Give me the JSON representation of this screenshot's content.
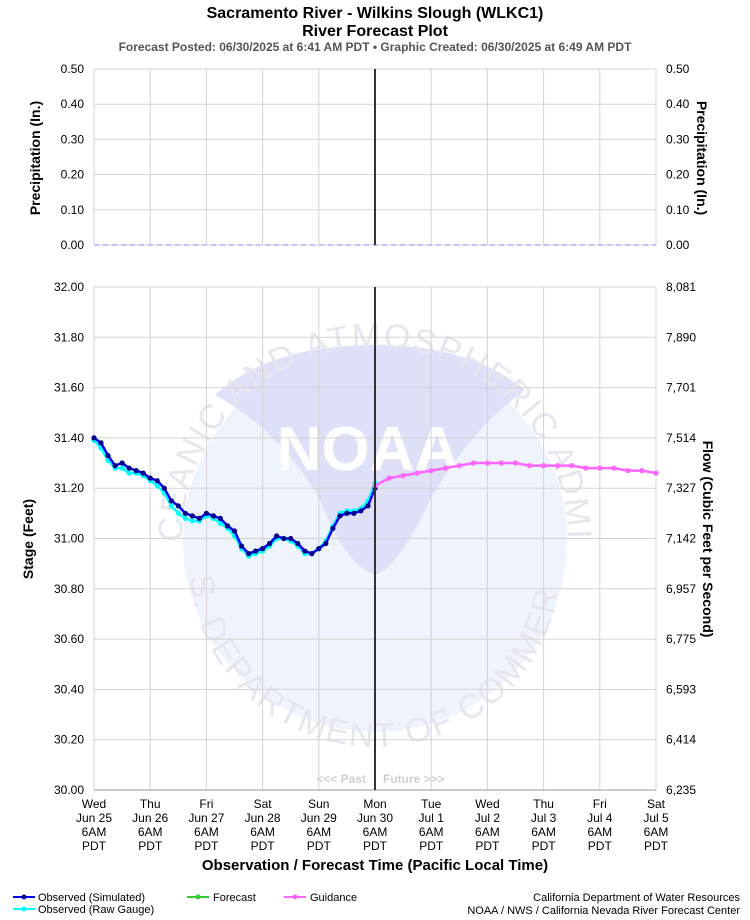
{
  "title_line1": "Sacramento River - Wilkins Slough (WLKC1)",
  "title_line2": "River Forecast Plot",
  "subtitle": "Forecast Posted: 06/30/2025 at 6:41 AM PDT  •  Graphic Created: 06/30/2025 at 6:49 AM PDT",
  "watermark": {
    "noaa": "NOAA",
    "ring_top": "NATIONAL OCEANIC AND ATMOSPHERIC ADMINISTRATION",
    "ring_bottom": "U.S. DEPARTMENT OF COMMERCE"
  },
  "past_label": "<<< Past",
  "future_label": "Future >>>",
  "x_axis_title": "Observation / Forecast Time (Pacific Local Time)",
  "legend": {
    "observed_simulated": "Observed (Simulated)",
    "observed_raw": "Observed (Raw Gauge)",
    "forecast": "Forecast",
    "guidance": "Guidance"
  },
  "credits": {
    "line1": "California Department of Water Resources",
    "line2": "NOAA / NWS / California Nevada River Forecast Center"
  },
  "colors": {
    "observed_simulated": "#0000ff",
    "observed_simulated_marker": "#00008b",
    "observed_raw": "#00ffff",
    "forecast": "#33cc33",
    "guidance": "#ff66ff",
    "precip_dash": "#aab4ff",
    "now_line": "#333333",
    "grid": "#d3d3d3"
  },
  "chart_data": [
    {
      "type": "line",
      "panel": "precipitation",
      "ylabel_left": "Precipitation (In.)",
      "ylabel_right": "Precipitation (In.)",
      "ylim": [
        0,
        0.5
      ],
      "yticks": [
        "0.00",
        "0.10",
        "0.20",
        "0.30",
        "0.40",
        "0.50"
      ],
      "grid": true,
      "series": [
        {
          "values_note": "",
          "t_start_hours": 0,
          "t_end_hours": 240,
          "values": [
            0,
            0
          ]
        }
      ]
    },
    {
      "type": "line",
      "panel": "stage",
      "ylabel_left": "Stage (Feet)",
      "ylabel_right": "Flow (Cubic Feet per Second)",
      "ylim": [
        30.0,
        32.0
      ],
      "yticks_left": [
        "30.00",
        "30.20",
        "30.40",
        "30.60",
        "30.80",
        "31.00",
        "31.20",
        "31.40",
        "31.60",
        "31.80",
        "32.00"
      ],
      "yticks_right": [
        "6,235",
        "6,414",
        "6,593",
        "6,775",
        "6,957",
        "7,142",
        "7,327",
        "7,514",
        "7,701",
        "7,890",
        "8,081"
      ],
      "x_hours_per_day": 24,
      "x_ticks": [
        {
          "day": "Wed",
          "date": "Jun 25",
          "time": "6AM",
          "tz": "PDT"
        },
        {
          "day": "Thu",
          "date": "Jun 26",
          "time": "6AM",
          "tz": "PDT"
        },
        {
          "day": "Fri",
          "date": "Jun 27",
          "time": "6AM",
          "tz": "PDT"
        },
        {
          "day": "Sat",
          "date": "Jun 28",
          "time": "6AM",
          "tz": "PDT"
        },
        {
          "day": "Sun",
          "date": "Jun 29",
          "time": "6AM",
          "tz": "PDT"
        },
        {
          "day": "Mon",
          "date": "Jun 30",
          "time": "6AM",
          "tz": "PDT"
        },
        {
          "day": "Tue",
          "date": "Jul 1",
          "time": "6AM",
          "tz": "PDT"
        },
        {
          "day": "Wed",
          "date": "Jul 2",
          "time": "6AM",
          "tz": "PDT"
        },
        {
          "day": "Thu",
          "date": "Jul 3",
          "time": "6AM",
          "tz": "PDT"
        },
        {
          "day": "Fri",
          "date": "Jul 4",
          "time": "6AM",
          "tz": "PDT"
        },
        {
          "day": "Sat",
          "date": "Jul 5",
          "time": "6AM",
          "tz": "PDT"
        }
      ],
      "now_hours": 120,
      "grid": true,
      "observed_simulated": {
        "t_hours": [
          0,
          3,
          6,
          9,
          12,
          15,
          18,
          21,
          24,
          27,
          30,
          33,
          36,
          39,
          42,
          45,
          48,
          51,
          54,
          57,
          60,
          63,
          66,
          69,
          72,
          75,
          78,
          81,
          84,
          87,
          90,
          93,
          96,
          99,
          102,
          105,
          108,
          111,
          114,
          117,
          120
        ],
        "stage": [
          31.4,
          31.38,
          31.33,
          31.29,
          31.3,
          31.28,
          31.27,
          31.26,
          31.24,
          31.23,
          31.2,
          31.15,
          31.13,
          31.1,
          31.09,
          31.08,
          31.1,
          31.09,
          31.08,
          31.05,
          31.03,
          30.97,
          30.94,
          30.95,
          30.96,
          30.98,
          31.01,
          31.0,
          31.0,
          30.98,
          30.95,
          30.94,
          30.96,
          30.98,
          31.04,
          31.09,
          31.1,
          31.1,
          31.11,
          31.13,
          31.2
        ]
      },
      "observed_raw": {
        "t_hours": [
          0,
          3,
          6,
          9,
          12,
          15,
          18,
          21,
          24,
          27,
          30,
          33,
          36,
          39,
          42,
          45,
          48,
          51,
          54,
          57,
          60,
          63,
          66,
          69,
          72,
          75,
          78,
          81,
          84,
          87,
          90,
          93,
          96,
          99,
          102,
          105,
          108,
          111,
          114,
          117,
          120
        ],
        "stage": [
          31.39,
          31.36,
          31.31,
          31.28,
          31.28,
          31.26,
          31.26,
          31.25,
          31.23,
          31.21,
          31.18,
          31.13,
          31.1,
          31.08,
          31.07,
          31.07,
          31.09,
          31.08,
          31.06,
          31.04,
          31.01,
          30.96,
          30.93,
          30.94,
          30.95,
          30.97,
          31.0,
          31.0,
          30.99,
          30.97,
          30.94,
          30.94,
          30.96,
          30.99,
          31.05,
          31.1,
          31.11,
          31.11,
          31.12,
          31.15,
          31.22
        ]
      },
      "guidance": {
        "t_hours": [
          120,
          126,
          132,
          138,
          144,
          150,
          156,
          162,
          168,
          174,
          180,
          186,
          192,
          198,
          204,
          210,
          216,
          222,
          228,
          234,
          240
        ],
        "stage": [
          31.21,
          31.24,
          31.25,
          31.26,
          31.27,
          31.28,
          31.29,
          31.3,
          31.3,
          31.3,
          31.3,
          31.29,
          31.29,
          31.29,
          31.29,
          31.28,
          31.28,
          31.28,
          31.27,
          31.27,
          31.26
        ]
      },
      "forecast": {
        "t_hours": [],
        "stage": []
      }
    }
  ]
}
